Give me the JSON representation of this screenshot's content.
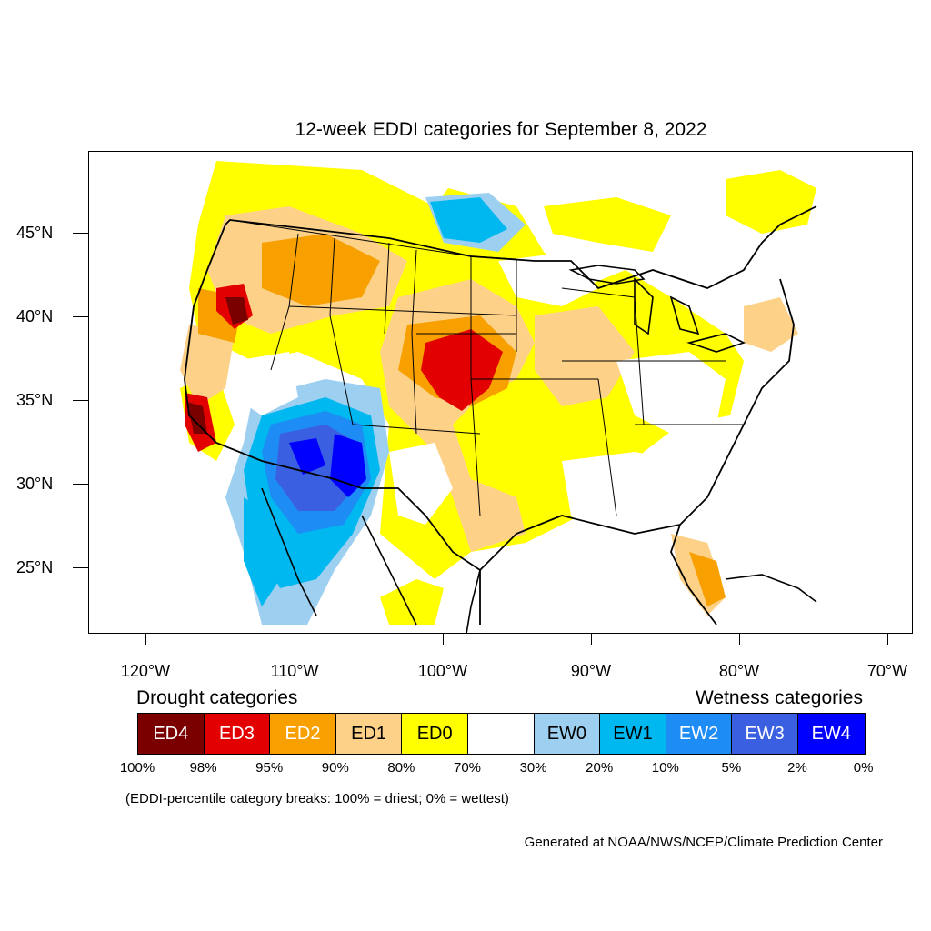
{
  "title": "12-week EDDI categories for September 8, 2022",
  "map": {
    "projection": "equidistant-cylindrical",
    "lon_range": [
      -124,
      -68.5
    ],
    "lat_range": [
      21,
      50
    ],
    "lat_labels": [
      "45°N",
      "40°N",
      "35°N",
      "30°N",
      "25°N"
    ],
    "lon_labels": [
      "120°W",
      "110°W",
      "100°W",
      "90°W",
      "80°W",
      "70°W"
    ]
  },
  "legend": {
    "drought_heading": "Drought categories",
    "wetness_heading": "Wetness categories",
    "categories": [
      {
        "label": "ED4",
        "color": "#7a0000",
        "text_color": "#ffffff"
      },
      {
        "label": "ED3",
        "color": "#e30000",
        "text_color": "#ffffff"
      },
      {
        "label": "ED2",
        "color": "#f7a000",
        "text_color": "#ffffff"
      },
      {
        "label": "ED1",
        "color": "#fdd288",
        "text_color": "#000000"
      },
      {
        "label": "ED0",
        "color": "#ffff00",
        "text_color": "#000000"
      },
      {
        "label": "",
        "color": "#ffffff",
        "text_color": "#000000"
      },
      {
        "label": "EW0",
        "color": "#9ccff0",
        "text_color": "#000000"
      },
      {
        "label": "EW1",
        "color": "#00b8f0",
        "text_color": "#000000"
      },
      {
        "label": "EW2",
        "color": "#1e8cf5",
        "text_color": "#ffffff"
      },
      {
        "label": "EW3",
        "color": "#3a5fe0",
        "text_color": "#ffffff"
      },
      {
        "label": "EW4",
        "color": "#0000ff",
        "text_color": "#ffffff"
      }
    ],
    "percentiles": [
      "100%",
      "98%",
      "95%",
      "90%",
      "80%",
      "70%",
      "30%",
      "20%",
      "10%",
      "5%",
      "2%",
      "0%"
    ]
  },
  "note": "(EDDI-percentile category breaks: 100% = driest; 0% = wettest)",
  "credit": "Generated at NOAA/NWS/NCEP/Climate Prediction Center"
}
